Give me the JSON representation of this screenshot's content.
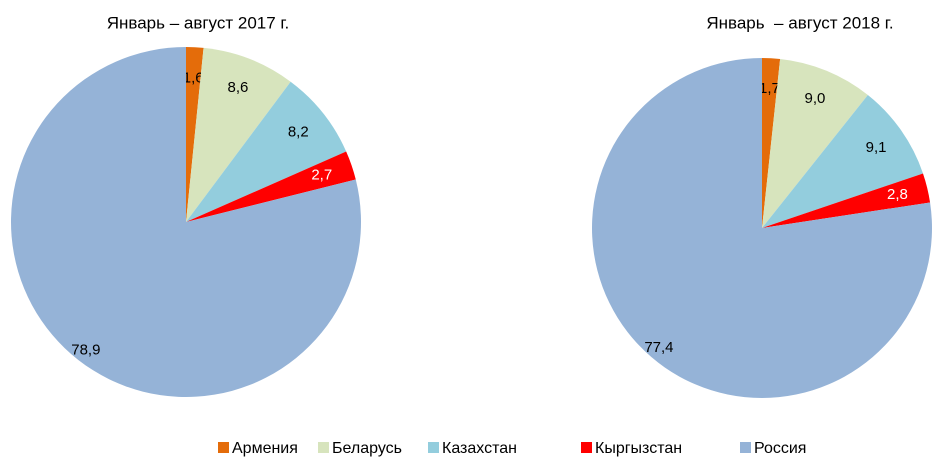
{
  "chart_data": [
    {
      "type": "pie",
      "title": "Январь – август 2017 г.",
      "categories": [
        "Армения",
        "Беларусь",
        "Казахстан",
        "Кыргызстан",
        "Россия"
      ],
      "values": [
        1.6,
        8.6,
        8.2,
        2.7,
        78.9
      ],
      "value_labels": [
        "1,6",
        "8,6",
        "8,2",
        "2,7",
        "78,9"
      ],
      "colors": [
        "#e46c0a",
        "#d7e4bd",
        "#93cddd",
        "#ff0000",
        "#95b3d7"
      ]
    },
    {
      "type": "pie",
      "title": "Январь  – август 2018 г.",
      "categories": [
        "Армения",
        "Беларусь",
        "Казахстан",
        "Кыргызстан",
        "Россия"
      ],
      "values": [
        1.7,
        9.0,
        9.1,
        2.8,
        77.4
      ],
      "value_labels": [
        "1,7",
        "9,0",
        "9,1",
        "2,8",
        "77,4"
      ],
      "colors": [
        "#e46c0a",
        "#d7e4bd",
        "#93cddd",
        "#ff0000",
        "#95b3d7"
      ]
    }
  ]
}
